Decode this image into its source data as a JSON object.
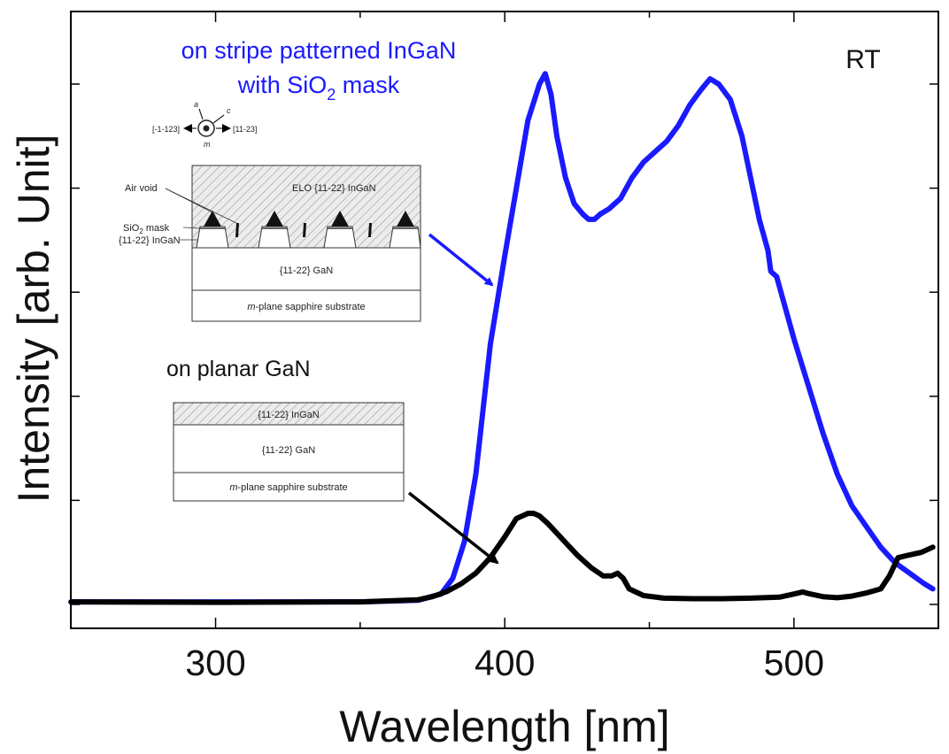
{
  "chart_data": {
    "type": "line",
    "xlabel": "Wavelength [nm]",
    "ylabel": "Intensity [arb. Unit]",
    "xlim": [
      250,
      550
    ],
    "ylim": [
      0,
      100
    ],
    "x_ticks": [
      300,
      400,
      500
    ],
    "y_ticks_labeled": false,
    "grid": false,
    "series": [
      {
        "name": "on stripe patterned InGaN with SiO2 mask",
        "color": "#1a1aff",
        "x": [
          250,
          300,
          350,
          370,
          378,
          382,
          386,
          390,
          395,
          400,
          404,
          408,
          412,
          414,
          416,
          418,
          421,
          424,
          427,
          429,
          431,
          433,
          436,
          440,
          444,
          448,
          452,
          456,
          460,
          464,
          468,
          471,
          474,
          478,
          482,
          485,
          488,
          491,
          492,
          494,
          497,
          500,
          505,
          510,
          515,
          520,
          525,
          530,
          535,
          540,
          545,
          548
        ],
        "y": [
          0.5,
          0.5,
          0.5,
          0.8,
          2,
          5,
          12,
          25,
          50,
          67,
          80,
          93,
          100,
          102,
          98,
          90,
          82,
          77,
          75,
          74,
          74,
          75,
          76,
          78,
          82,
          85,
          87,
          89,
          92,
          96,
          99,
          101,
          100,
          97,
          90,
          82,
          74,
          68,
          64,
          63,
          57,
          51,
          42,
          33,
          25,
          19,
          15,
          11,
          8,
          6,
          4,
          3
        ]
      },
      {
        "name": "on planar GaN",
        "color": "#000000",
        "x": [
          250,
          300,
          350,
          370,
          375,
          380,
          385,
          390,
          395,
          400,
          404,
          408,
          410,
          412,
          415,
          420,
          425,
          430,
          434,
          437,
          439,
          441,
          443,
          448,
          455,
          465,
          475,
          485,
          495,
          500,
          503,
          505,
          510,
          515,
          520,
          525,
          530,
          533,
          536,
          540,
          544,
          548
        ],
        "y": [
          0.5,
          0.4,
          0.5,
          0.9,
          1.5,
          2.5,
          4,
          6,
          9,
          13,
          16.5,
          17.5,
          17.5,
          17,
          15.5,
          12.5,
          9.5,
          7,
          5.5,
          5.5,
          6,
          5,
          3,
          1.7,
          1.2,
          1.1,
          1.1,
          1.2,
          1.4,
          2,
          2.4,
          2.1,
          1.5,
          1.3,
          1.6,
          2.2,
          3,
          5.5,
          9,
          9.5,
          10,
          11
        ]
      }
    ],
    "annotations": {
      "corner_label": "RT",
      "series1_label_line1": "on stripe patterned InGaN",
      "series1_label_line2": "with SiO",
      "series1_label_sub": "2",
      "series1_label_tail": " mask",
      "series2_label": "on planar GaN"
    }
  },
  "inset_patterned": {
    "orientation": {
      "axis_a": "a",
      "axis_c": "c",
      "axis_m": "m",
      "dir_left": "[-1-123]",
      "dir_right": "[11-23]"
    },
    "elo_layer": "ELO {11-22} InGaN",
    "air_void": "Air void",
    "mask_label_prefix": "SiO",
    "mask_label_sub": "2",
    "mask_label_suffix": " mask",
    "ingan_layer": "{11-22} InGaN",
    "gan_layer": "{11-22} GaN",
    "substrate_italic": "m",
    "substrate_rest": "-plane sapphire substrate"
  },
  "inset_planar": {
    "ingan_layer": "{11-22} InGaN",
    "gan_layer": "{11-22} GaN",
    "substrate_italic": "m",
    "substrate_rest": "-plane sapphire substrate"
  },
  "colors": {
    "patterned_series": "#1a1aff",
    "planar_series": "#000000",
    "label_blue": "#1a1aff"
  }
}
